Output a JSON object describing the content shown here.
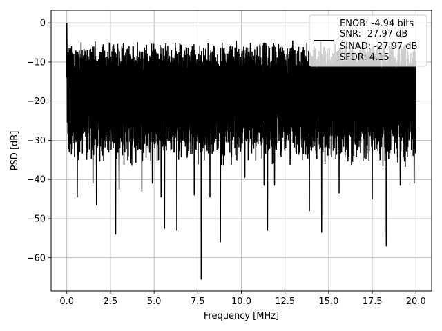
{
  "chart_data": {
    "type": "line",
    "xlabel": "Frequency [MHz]",
    "ylabel": "PSD [dB]",
    "xlim": [
      -0.9,
      20.9
    ],
    "ylim": [
      -68.5,
      3.2
    ],
    "x_ticks": [
      0.0,
      2.5,
      5.0,
      7.5,
      10.0,
      12.5,
      15.0,
      17.5,
      20.0
    ],
    "x_tick_labels": [
      "0.0",
      "2.5",
      "5.0",
      "7.5",
      "10.0",
      "12.5",
      "15.0",
      "17.5",
      "20.0"
    ],
    "y_ticks": [
      0,
      -10,
      -20,
      -30,
      -40,
      -50,
      -60
    ],
    "y_tick_labels": [
      "0",
      "−10",
      "−20",
      "−30",
      "−40",
      "−50",
      "−60"
    ],
    "grid": true,
    "legend_position": "top-right",
    "colors": {
      "line": "#000000",
      "grid": "#b0b0b0"
    },
    "series": [
      {
        "name": "ENOB: -4.94 bits\nSNR: -27.97 dB\nSINAD: -27.97 dB\nSFDR: 4.15",
        "legend_lines": [
          "ENOB: -4.94 bits",
          "SNR: -27.97 dB",
          "SINAD: -27.97 dB",
          "SFDR: 4.15"
        ],
        "peak": {
          "x": 0.0,
          "y": 0
        },
        "start_y": -14,
        "noise_band": {
          "upper_min": -9,
          "upper_max": -5,
          "lower_min": -37,
          "lower_max": -28
        },
        "dips": [
          {
            "x": 0.6,
            "y": -44.5
          },
          {
            "x": 1.5,
            "y": -41
          },
          {
            "x": 1.7,
            "y": -46.5
          },
          {
            "x": 2.8,
            "y": -54
          },
          {
            "x": 3.0,
            "y": -42.5
          },
          {
            "x": 4.3,
            "y": -43
          },
          {
            "x": 4.9,
            "y": -41
          },
          {
            "x": 5.4,
            "y": -44.5
          },
          {
            "x": 5.6,
            "y": -52.5
          },
          {
            "x": 6.3,
            "y": -53
          },
          {
            "x": 7.3,
            "y": -44
          },
          {
            "x": 7.7,
            "y": -65.5
          },
          {
            "x": 8.2,
            "y": -44.5
          },
          {
            "x": 8.8,
            "y": -56
          },
          {
            "x": 10.2,
            "y": -39.5
          },
          {
            "x": 11.3,
            "y": -41.5
          },
          {
            "x": 11.5,
            "y": -53
          },
          {
            "x": 11.9,
            "y": -41.5
          },
          {
            "x": 13.9,
            "y": -48
          },
          {
            "x": 14.6,
            "y": -53.5
          },
          {
            "x": 15.6,
            "y": -43.5
          },
          {
            "x": 17.5,
            "y": -45
          },
          {
            "x": 18.3,
            "y": -57
          },
          {
            "x": 19.1,
            "y": -41.5
          },
          {
            "x": 19.9,
            "y": -41
          }
        ]
      }
    ]
  }
}
